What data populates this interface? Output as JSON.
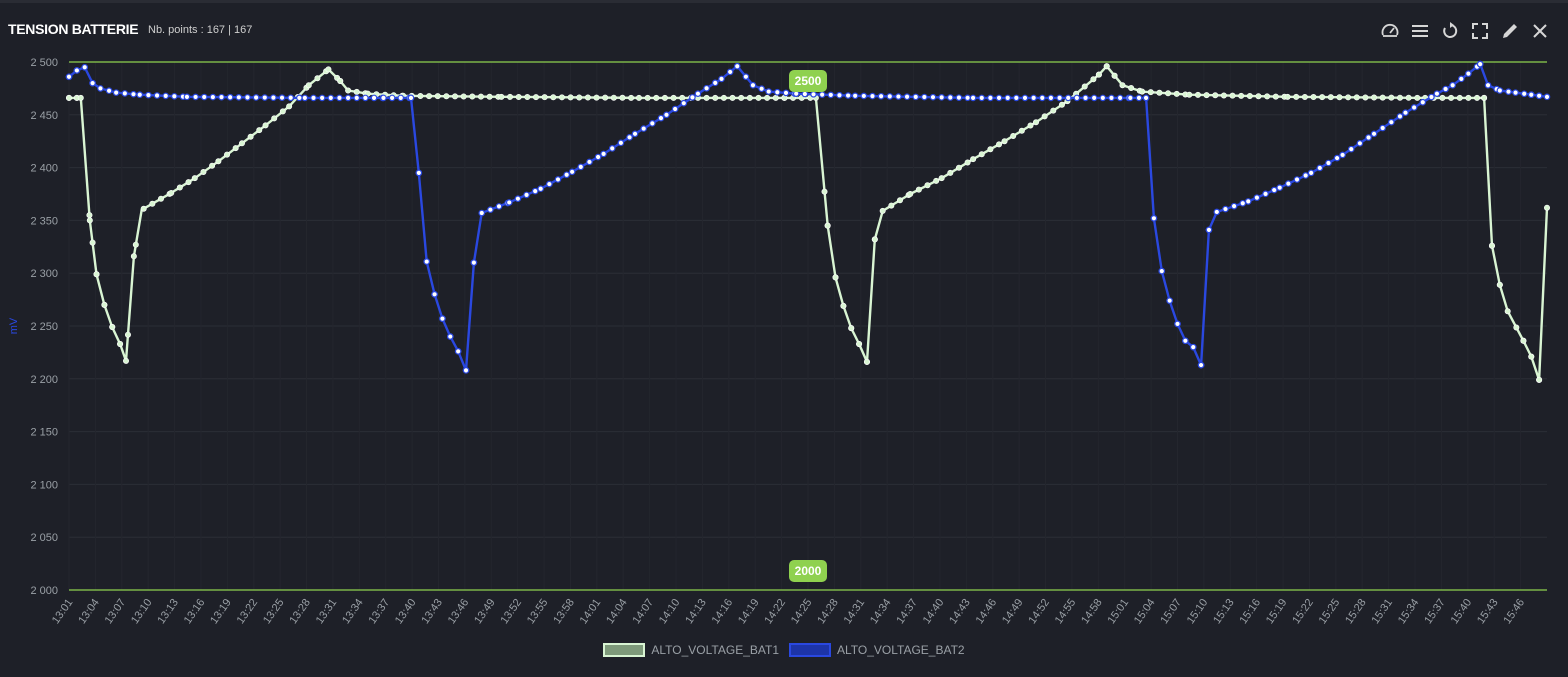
{
  "header": {
    "title": "TENSION BATTERIE",
    "points_label": "Nb. points : 167 | 167"
  },
  "toolbar": [
    {
      "name": "speedometer-icon"
    },
    {
      "name": "menu-icon"
    },
    {
      "name": "refresh-icon"
    },
    {
      "name": "fullscreen-icon"
    },
    {
      "name": "pencil-icon"
    },
    {
      "name": "close-icon"
    }
  ],
  "colors": {
    "background": "#1e2028",
    "grid": "#2b2e36",
    "threshold": "#8fd14f",
    "bat1": "#d9f5d3",
    "bat2": "#2a48e0"
  },
  "chart_data": {
    "type": "line",
    "ylabel": "mV",
    "ylim": [
      2000,
      2500
    ],
    "yticks": [
      "2 000",
      "2 050",
      "2 100",
      "2 150",
      "2 200",
      "2 250",
      "2 300",
      "2 350",
      "2 400",
      "2 450",
      "2 500"
    ],
    "xticks": [
      "13:01",
      "13:04",
      "13:07",
      "13:10",
      "13:13",
      "13:16",
      "13:19",
      "13:22",
      "13:25",
      "13:28",
      "13:31",
      "13:34",
      "13:37",
      "13:40",
      "13:43",
      "13:46",
      "13:49",
      "13:52",
      "13:55",
      "13:58",
      "14:01",
      "14:04",
      "14:07",
      "14:10",
      "14:13",
      "14:16",
      "14:19",
      "14:22",
      "14:25",
      "14:28",
      "14:31",
      "14:34",
      "14:37",
      "14:40",
      "14:43",
      "14:46",
      "14:49",
      "14:52",
      "14:55",
      "14:58",
      "15:01",
      "15:04",
      "15:07",
      "15:10",
      "15:13",
      "15:16",
      "15:19",
      "15:22",
      "15:25",
      "15:28",
      "15:31",
      "15:34",
      "15:37",
      "15:40",
      "15:43",
      "15:46"
    ],
    "thresholds": [
      {
        "value": 2500,
        "label": "2500"
      },
      {
        "value": 2000,
        "label": "2000"
      }
    ],
    "legend_position": "bottom-center",
    "series": [
      {
        "name": "ALTO_VOLTAGE_BAT1",
        "points": [
          [
            0,
            2466
          ],
          [
            2,
            2466
          ],
          [
            3,
            2466
          ],
          [
            5.3,
            2350
          ],
          [
            7,
            2299
          ],
          [
            9,
            2270
          ],
          [
            11,
            2249
          ],
          [
            13,
            2233
          ],
          [
            14.5,
            2217
          ],
          [
            16.5,
            2316
          ],
          [
            18.5,
            2360
          ],
          [
            26,
            2376
          ],
          [
            32,
            2390
          ],
          [
            38,
            2406
          ],
          [
            44,
            2423
          ],
          [
            50,
            2440
          ],
          [
            56,
            2458
          ],
          [
            61,
            2478
          ],
          [
            66,
            2493
          ],
          [
            69,
            2482
          ],
          [
            71,
            2473
          ],
          [
            76,
            2470
          ],
          [
            85,
            2468
          ],
          [
            110,
            2467
          ],
          [
            145,
            2466
          ],
          [
            160,
            2466
          ],
          [
            182,
            2466
          ],
          [
            190,
            2466
          ],
          [
            193,
            2345
          ],
          [
            195,
            2296
          ],
          [
            197,
            2269
          ],
          [
            199,
            2248
          ],
          [
            201,
            2233
          ],
          [
            203,
            2216
          ],
          [
            205,
            2332
          ],
          [
            207,
            2359
          ],
          [
            214,
            2375
          ],
          [
            222,
            2390
          ],
          [
            230,
            2408
          ],
          [
            238,
            2425
          ],
          [
            246,
            2443
          ],
          [
            254,
            2463
          ],
          [
            262,
            2488
          ],
          [
            264,
            2496
          ],
          [
            266,
            2487
          ],
          [
            268,
            2478
          ],
          [
            273,
            2472
          ],
          [
            285,
            2469
          ],
          [
            310,
            2467
          ],
          [
            345,
            2466
          ],
          [
            360,
            2466
          ],
          [
            362,
            2326
          ],
          [
            364,
            2289
          ],
          [
            366,
            2264
          ],
          [
            370,
            2236
          ],
          [
            372,
            2221
          ],
          [
            374,
            2199
          ],
          [
            376,
            2362
          ]
        ]
      },
      {
        "name": "ALTO_VOLTAGE_BAT2",
        "points": [
          [
            0,
            2486
          ],
          [
            2,
            2492
          ],
          [
            4,
            2495
          ],
          [
            6,
            2480
          ],
          [
            8,
            2475
          ],
          [
            12,
            2471
          ],
          [
            18,
            2469
          ],
          [
            30,
            2467
          ],
          [
            60,
            2466
          ],
          [
            80,
            2466
          ],
          [
            87,
            2466
          ],
          [
            89,
            2395
          ],
          [
            91,
            2311
          ],
          [
            93,
            2280
          ],
          [
            95,
            2257
          ],
          [
            97,
            2240
          ],
          [
            99,
            2226
          ],
          [
            101,
            2208
          ],
          [
            103,
            2310
          ],
          [
            105,
            2357
          ],
          [
            112,
            2367
          ],
          [
            120,
            2380
          ],
          [
            128,
            2396
          ],
          [
            136,
            2413
          ],
          [
            144,
            2432
          ],
          [
            152,
            2450
          ],
          [
            160,
            2470
          ],
          [
            166,
            2484
          ],
          [
            170,
            2496
          ],
          [
            174,
            2478
          ],
          [
            178,
            2472
          ],
          [
            185,
            2470
          ],
          [
            200,
            2468
          ],
          [
            230,
            2466
          ],
          [
            270,
            2466
          ],
          [
            274,
            2466
          ],
          [
            276,
            2352
          ],
          [
            278,
            2302
          ],
          [
            280,
            2274
          ],
          [
            282,
            2252
          ],
          [
            284,
            2236
          ],
          [
            286,
            2230
          ],
          [
            288,
            2213
          ],
          [
            290,
            2341
          ],
          [
            292,
            2358
          ],
          [
            300,
            2368
          ],
          [
            308,
            2381
          ],
          [
            316,
            2395
          ],
          [
            324,
            2412
          ],
          [
            332,
            2432
          ],
          [
            340,
            2452
          ],
          [
            348,
            2470
          ],
          [
            352,
            2478
          ],
          [
            356,
            2489
          ],
          [
            359,
            2498
          ],
          [
            361,
            2478
          ],
          [
            364,
            2473
          ],
          [
            368,
            2471
          ],
          [
            372,
            2469
          ],
          [
            374,
            2468
          ],
          [
            376,
            2467
          ]
        ]
      }
    ]
  }
}
